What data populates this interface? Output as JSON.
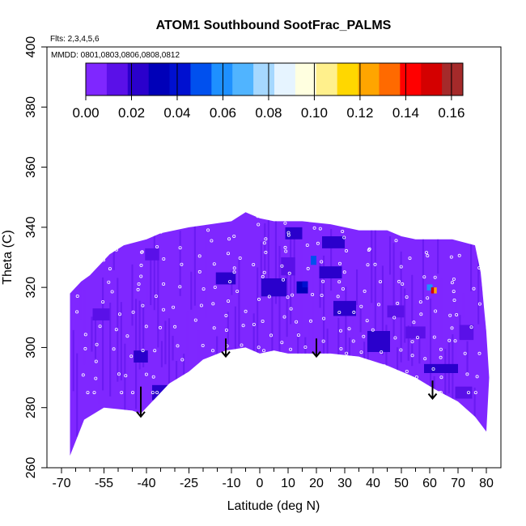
{
  "chart_data": {
    "type": "heatmap",
    "title": "ATOM1 Southbound SootFrac_PALMS",
    "flights_label": "Flts: 2,3,4,5,6",
    "dates_label": "MMDD: 0801,0803,0806,0808,0812",
    "xlabel": "Latitude (deg N)",
    "ylabel": "Theta (C)",
    "xlim": [
      -70,
      80
    ],
    "ylim": [
      260,
      400
    ],
    "x_tick_labels": [
      "-70",
      "-55",
      "-40",
      "-25",
      "-10",
      "0",
      "10",
      "20",
      "30",
      "40",
      "50",
      "60",
      "70",
      "80"
    ],
    "x_tick_values": [
      -70,
      -55,
      -40,
      -25,
      -10,
      0,
      10,
      20,
      30,
      40,
      50,
      60,
      70,
      80
    ],
    "x_minor_ticks": [
      -65,
      -60,
      -50,
      -45,
      -35,
      -30,
      -20,
      -15,
      -5,
      5,
      15,
      25,
      35,
      45,
      55,
      65,
      75
    ],
    "y_tick_labels": [
      "260",
      "280",
      "300",
      "320",
      "340",
      "360",
      "380",
      "400"
    ],
    "y_tick_values": [
      260,
      280,
      300,
      320,
      340,
      360,
      380,
      400
    ],
    "colorbar": {
      "min": 0.0,
      "max": 0.165,
      "tick_labels": [
        "0.00",
        "0.02",
        "0.04",
        "0.06",
        "0.08",
        "0.10",
        "0.12",
        "0.14",
        "0.16"
      ],
      "tick_values": [
        0,
        0.02,
        0.04,
        0.06,
        0.08,
        0.1,
        0.12,
        0.14,
        0.16
      ],
      "colors": [
        "#7f27ff",
        "#5a10e8",
        "#2a00cc",
        "#0000b8",
        "#0010d0",
        "#0050ee",
        "#1e90ff",
        "#50b4ff",
        "#a6d8ff",
        "#e6f4ff",
        "#ffffe0",
        "#fff08c",
        "#ffd700",
        "#ffa500",
        "#ff6a00",
        "#ff0000",
        "#d40000",
        "#a52a2a"
      ]
    },
    "background_value": 0.005,
    "upper_boundary": [
      [
        -67,
        318
      ],
      [
        -65,
        320
      ],
      [
        -63,
        322
      ],
      [
        -60,
        324
      ],
      [
        -57,
        327
      ],
      [
        -53,
        331
      ],
      [
        -48,
        334
      ],
      [
        -40,
        336
      ],
      [
        -35,
        338
      ],
      [
        -25,
        340
      ],
      [
        -10,
        342
      ],
      [
        -5,
        345
      ],
      [
        0,
        343
      ],
      [
        5,
        342
      ],
      [
        15,
        342
      ],
      [
        25,
        341
      ],
      [
        35,
        339
      ],
      [
        45,
        339
      ],
      [
        50,
        337
      ],
      [
        55,
        336
      ],
      [
        60,
        336
      ],
      [
        68,
        336
      ],
      [
        76,
        334
      ],
      [
        78,
        325
      ],
      [
        80,
        305
      ],
      [
        81,
        290
      ]
    ],
    "lower_boundary": [
      [
        -67,
        264
      ],
      [
        -62,
        276
      ],
      [
        -55,
        280
      ],
      [
        -45,
        279
      ],
      [
        -42,
        278
      ],
      [
        -38,
        282
      ],
      [
        -32,
        288
      ],
      [
        -25,
        292
      ],
      [
        -20,
        296
      ],
      [
        -12,
        299
      ],
      [
        -5,
        300
      ],
      [
        0,
        298
      ],
      [
        5,
        299
      ],
      [
        10,
        298
      ],
      [
        20,
        298
      ],
      [
        25,
        298
      ],
      [
        35,
        297
      ],
      [
        45,
        294
      ],
      [
        55,
        290
      ],
      [
        62,
        286
      ],
      [
        70,
        282
      ],
      [
        76,
        277
      ],
      [
        80,
        272
      ]
    ],
    "features": [
      {
        "lon": -56,
        "theta": 311,
        "w": 6,
        "h": 4,
        "value": 0.018
      },
      {
        "lon": -34,
        "theta": 285,
        "w": 8,
        "h": 5,
        "value": 0.022
      },
      {
        "lon": -42,
        "theta": 297,
        "w": 5,
        "h": 4,
        "value": 0.02
      },
      {
        "lon": -38,
        "theta": 331,
        "w": 5,
        "h": 4,
        "value": 0.016
      },
      {
        "lon": -12,
        "theta": 323,
        "w": 7,
        "h": 4,
        "value": 0.019
      },
      {
        "lon": 5,
        "theta": 320,
        "w": 9,
        "h": 6,
        "value": 0.02
      },
      {
        "lon": 10,
        "theta": 327,
        "w": 5,
        "h": 6,
        "value": 0.015
      },
      {
        "lon": 12,
        "theta": 338,
        "w": 6,
        "h": 4,
        "value": 0.02
      },
      {
        "lon": 15,
        "theta": 320,
        "w": 4,
        "h": 4,
        "value": 0.028
      },
      {
        "lon": 16,
        "theta": 321,
        "w": 2,
        "h": 2,
        "value": 0.045
      },
      {
        "lon": 19,
        "theta": 329,
        "w": 2,
        "h": 3,
        "value": 0.05
      },
      {
        "lon": 26,
        "theta": 335,
        "w": 8,
        "h": 4,
        "value": 0.02
      },
      {
        "lon": 25,
        "theta": 325,
        "w": 8,
        "h": 4,
        "value": 0.019
      },
      {
        "lon": 30,
        "theta": 313,
        "w": 8,
        "h": 5,
        "value": 0.024
      },
      {
        "lon": 42,
        "theta": 302,
        "w": 8,
        "h": 7,
        "value": 0.025
      },
      {
        "lon": 48,
        "theta": 312,
        "w": 6,
        "h": 4,
        "value": 0.018
      },
      {
        "lon": 55,
        "theta": 305,
        "w": 7,
        "h": 4,
        "value": 0.018
      },
      {
        "lon": 64,
        "theta": 293,
        "w": 12,
        "h": 3,
        "value": 0.022
      },
      {
        "lon": 72,
        "theta": 285,
        "w": 6,
        "h": 4,
        "value": 0.018
      },
      {
        "lon": 73,
        "theta": 305,
        "w": 5,
        "h": 5,
        "value": 0.016
      },
      {
        "lon": 60,
        "theta": 320,
        "w": 2,
        "h": 2,
        "value": 0.06
      },
      {
        "lon": 61,
        "theta": 319,
        "w": 1,
        "h": 2,
        "value": 0.15
      },
      {
        "lon": 62,
        "theta": 319,
        "w": 1,
        "h": 2,
        "value": 0.12
      }
    ],
    "arrows": [
      {
        "lon": -42,
        "theta_top": 287,
        "theta_tip": 277
      },
      {
        "lon": -12,
        "theta_top": 303,
        "theta_tip": 297
      },
      {
        "lon": 20,
        "theta_top": 303,
        "theta_tip": 297
      },
      {
        "lon": 61,
        "theta_top": 289,
        "theta_tip": 283
      }
    ],
    "legend": "colorbar top-left inside plot",
    "grid": false
  }
}
